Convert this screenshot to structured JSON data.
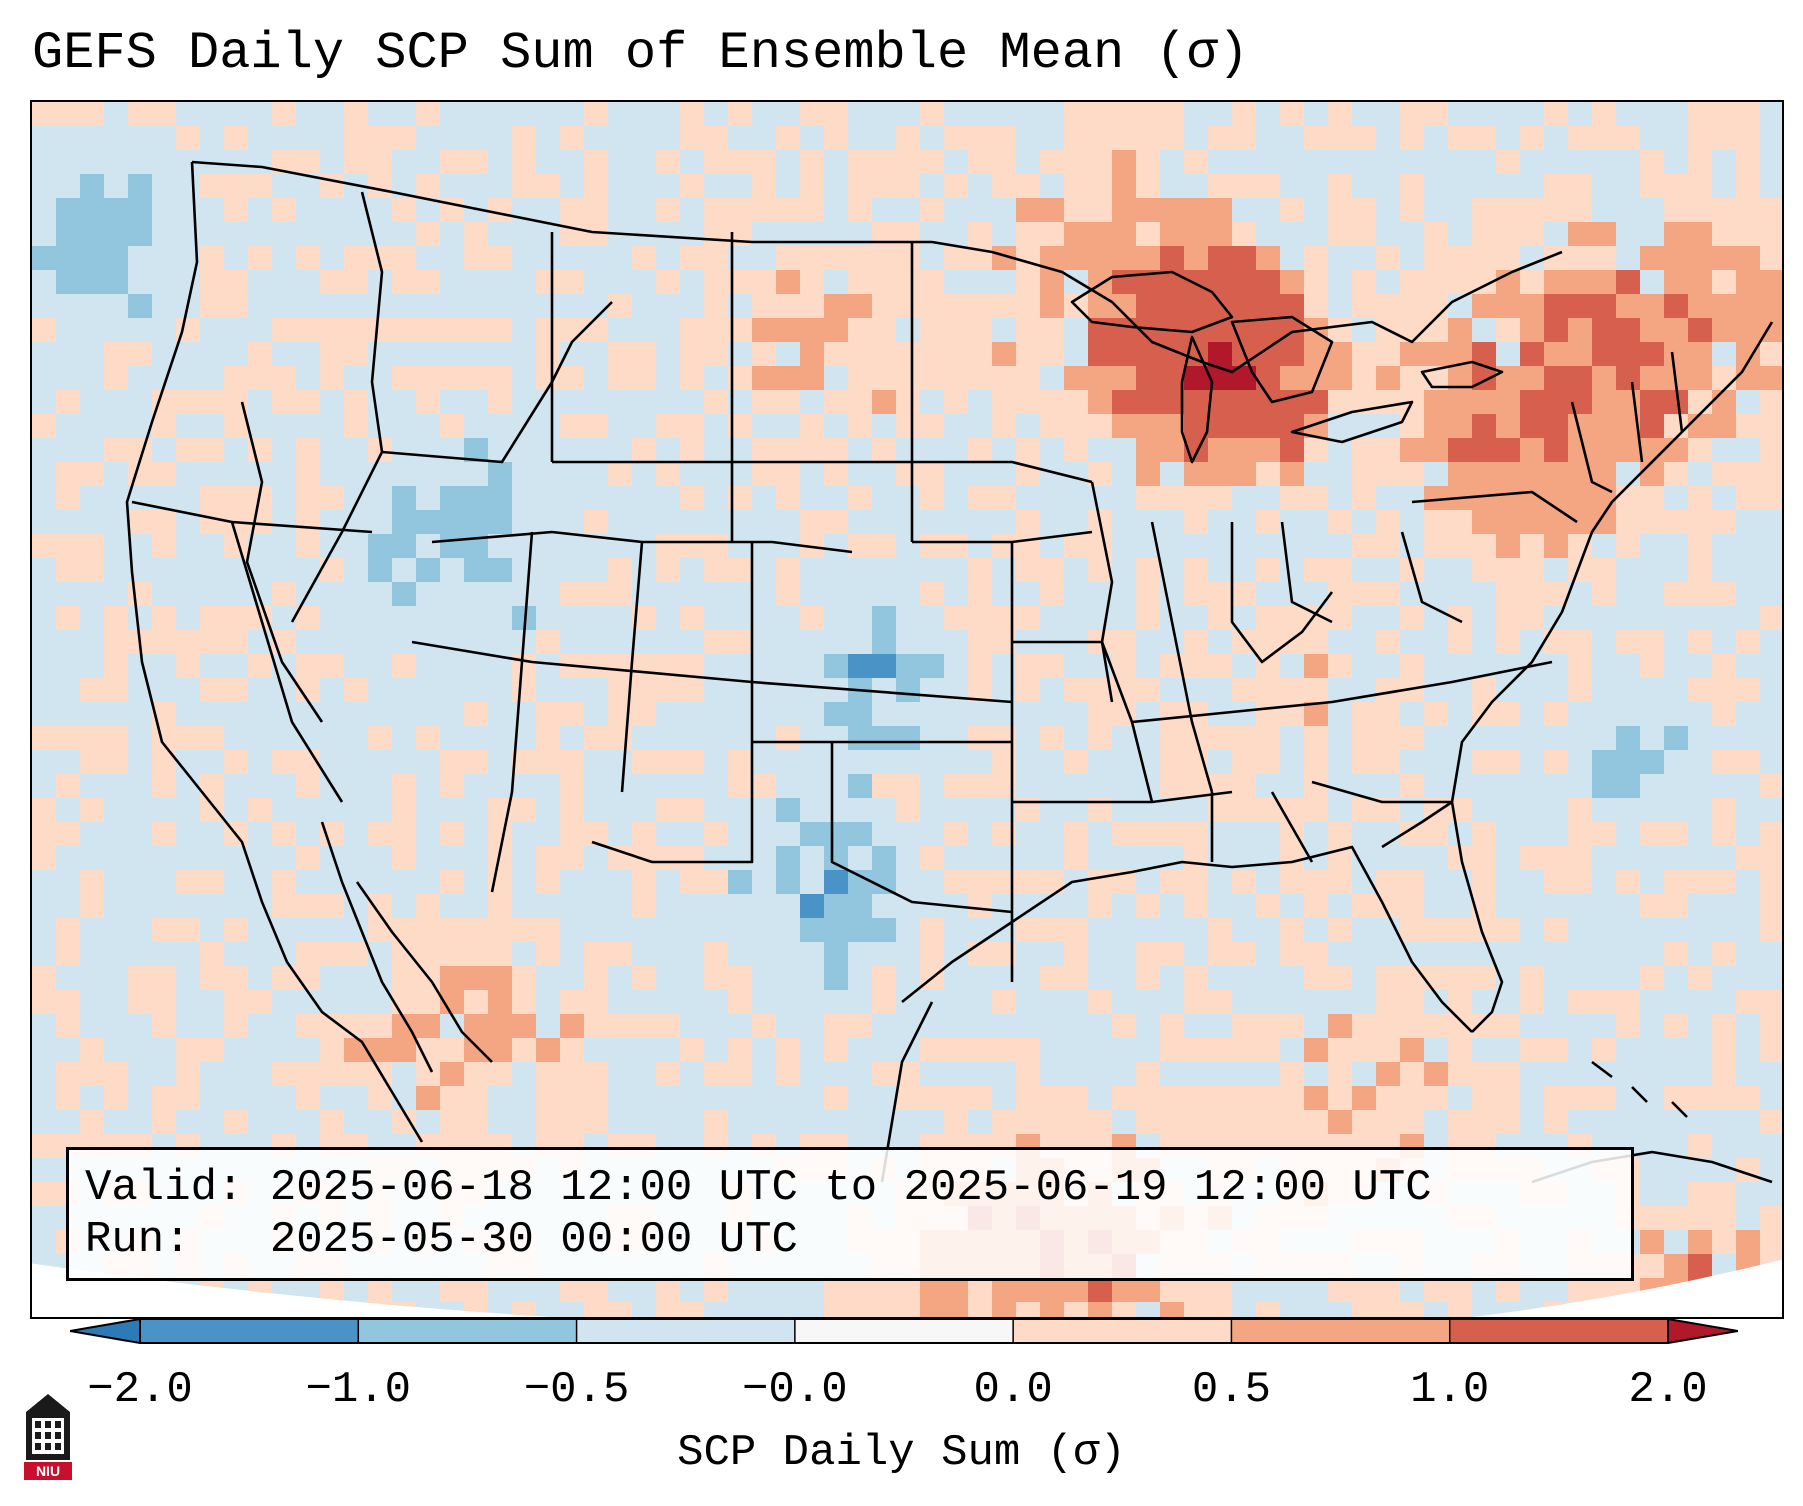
{
  "title": "GEFS Daily SCP Sum of Ensemble Mean (σ)",
  "info": {
    "valid_label": "Valid:",
    "valid_value": "2025-06-18 12:00 UTC to 2025-06-19 12:00 UTC",
    "run_label": "Run:",
    "run_value": "2025-05-30 00:00 UTC"
  },
  "colorbar": {
    "label": "SCP Daily Sum (σ)",
    "tick_labels": [
      "−2.0",
      "−1.0",
      "−0.5",
      "−0.0",
      "0.0",
      "0.5",
      "1.0",
      "2.0"
    ],
    "bin_colors": [
      "#2c7bb6",
      "#4a93c6",
      "#92c5de",
      "#d1e5f0",
      "#f7f7f7",
      "#fddbc7",
      "#f4a582",
      "#d6604d",
      "#b2182b"
    ]
  },
  "logo": {
    "text": "NIU",
    "icon": "university-tower-icon",
    "color": "#c8102e"
  },
  "map": {
    "background_color": "#d1e5f0",
    "boundary_color": "#000000"
  }
}
